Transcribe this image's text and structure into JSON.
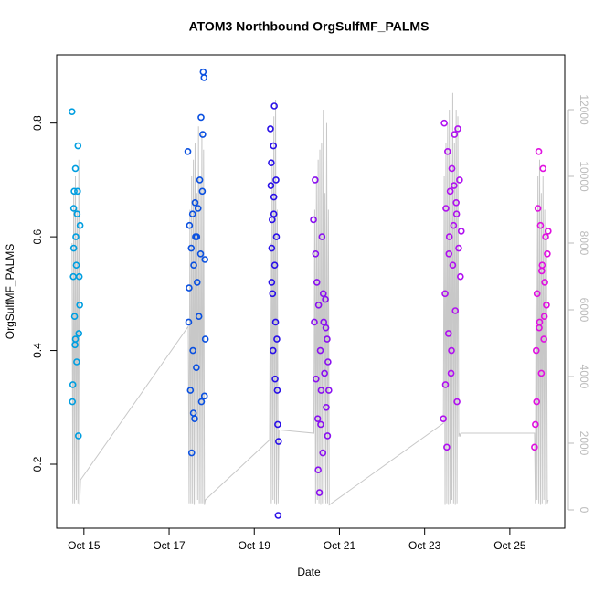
{
  "chart_data": {
    "type": "scatter",
    "title": "ATOM3 Northbound OrgSulfMF_PALMS",
    "x_label": "Date",
    "y_label": "OrgSulfMF_PALMS",
    "xlim": [
      14.36,
      26.29
    ],
    "xticks": [
      {
        "value": 15,
        "label": "Oct 15"
      },
      {
        "value": 17,
        "label": "Oct 17"
      },
      {
        "value": 19,
        "label": "Oct 19"
      },
      {
        "value": 21,
        "label": "Oct 21"
      },
      {
        "value": 23,
        "label": "Oct 23"
      },
      {
        "value": 25,
        "label": "Oct 25"
      }
    ],
    "ylim": [
      0.0875,
      0.92
    ],
    "yticks": [
      0.2,
      0.4,
      0.6,
      0.8
    ],
    "y2lim": [
      -548,
      13644
    ],
    "y2ticks": [
      0,
      2000,
      4000,
      6000,
      8000,
      10000,
      12000
    ],
    "series": [
      {
        "axis": "y2",
        "color": "#c8c8c8",
        "x": [
          14.72,
          14.74,
          14.76,
          14.78,
          14.8,
          14.82,
          14.84,
          14.86,
          14.88,
          14.9,
          14.92,
          17.45,
          17.47,
          17.49,
          17.51,
          17.53,
          17.55,
          17.57,
          17.59,
          17.61,
          17.63,
          17.65,
          17.67,
          17.69,
          17.71,
          17.73,
          17.75,
          17.77,
          17.79,
          17.81,
          17.83,
          17.85,
          19.36,
          19.38,
          19.4,
          19.42,
          19.44,
          19.46,
          19.48,
          19.5,
          19.52,
          19.54,
          19.56,
          19.58,
          20.4,
          20.42,
          20.44,
          20.46,
          20.48,
          20.5,
          20.52,
          20.54,
          20.56,
          20.58,
          20.6,
          20.62,
          20.64,
          20.66,
          20.68,
          20.7,
          20.72,
          20.74,
          20.76,
          23.44,
          23.46,
          23.48,
          23.5,
          23.52,
          23.54,
          23.56,
          23.58,
          23.6,
          23.62,
          23.64,
          23.66,
          23.68,
          23.7,
          23.72,
          23.74,
          23.76,
          23.78,
          23.8,
          23.82,
          23.84,
          23.86,
          25.58,
          25.6,
          25.62,
          25.64,
          25.66,
          25.68,
          25.7,
          25.72,
          25.74,
          25.76,
          25.78,
          25.8,
          25.82,
          25.84,
          25.86,
          25.88,
          25.9
        ],
        "values": [
          8000,
          200,
          9500,
          200,
          10000,
          300,
          9000,
          200,
          10500,
          150,
          900,
          5500,
          200,
          9000,
          200,
          10000,
          200,
          10500,
          150,
          11000,
          200,
          9500,
          300,
          11500,
          200,
          10000,
          200,
          11300,
          200,
          10800,
          150,
          300,
          2100,
          8000,
          200,
          10500,
          300,
          11800,
          200,
          12300,
          150,
          9000,
          200,
          2400,
          2300,
          9000,
          200,
          10000,
          300,
          10500,
          200,
          10800,
          150,
          11000,
          200,
          12000,
          300,
          9500,
          200,
          11600,
          200,
          9000,
          150,
          2600,
          10000,
          150,
          11000,
          200,
          11600,
          150,
          12000,
          200,
          11500,
          300,
          12500,
          200,
          11000,
          150,
          12000,
          200,
          11800,
          2200,
          2300,
          2200,
          2300,
          2300,
          200,
          9000,
          300,
          10000,
          200,
          10500,
          150,
          9500,
          200,
          10000,
          300,
          9000,
          150,
          8500,
          200,
          300
        ]
      },
      {
        "color": "#009ee0",
        "x": [
          14.72,
          14.73,
          14.74,
          14.75,
          14.76,
          14.77,
          14.78,
          14.79,
          14.8,
          14.81,
          14.82,
          14.83,
          14.84,
          14.85,
          14.86,
          14.87,
          14.88,
          14.89,
          14.9,
          14.91,
          14.76,
          14.8
        ],
        "values": [
          0.82,
          0.31,
          0.34,
          0.53,
          0.65,
          0.68,
          0.46,
          0.41,
          0.72,
          0.6,
          0.55,
          0.38,
          0.64,
          0.68,
          0.76,
          0.25,
          0.43,
          0.53,
          0.48,
          0.62,
          0.58,
          0.42
        ]
      },
      {
        "color": "#0a50e0",
        "x": [
          17.44,
          17.46,
          17.48,
          17.5,
          17.52,
          17.53,
          17.55,
          17.56,
          17.58,
          17.6,
          17.62,
          17.64,
          17.66,
          17.68,
          17.7,
          17.72,
          17.74,
          17.76,
          17.78,
          17.8,
          17.82,
          17.84,
          17.85,
          17.47,
          17.57,
          17.61,
          17.65,
          17.75,
          17.79,
          17.83
        ],
        "values": [
          0.75,
          0.45,
          0.62,
          0.33,
          0.58,
          0.22,
          0.64,
          0.4,
          0.55,
          0.28,
          0.6,
          0.37,
          0.52,
          0.65,
          0.46,
          0.7,
          0.57,
          0.31,
          0.68,
          0.89,
          0.88,
          0.56,
          0.42,
          0.51,
          0.29,
          0.66,
          0.6,
          0.81,
          0.78,
          0.32
        ]
      },
      {
        "color": "#2a10e8",
        "x": [
          19.38,
          19.39,
          19.4,
          19.41,
          19.42,
          19.43,
          19.44,
          19.45,
          19.46,
          19.47,
          19.48,
          19.49,
          19.5,
          19.51,
          19.52,
          19.53,
          19.54,
          19.55,
          19.56,
          19.57,
          19.41,
          19.46
        ],
        "values": [
          0.79,
          0.69,
          0.73,
          0.58,
          0.63,
          0.5,
          0.4,
          0.76,
          0.67,
          0.83,
          0.55,
          0.35,
          0.45,
          0.7,
          0.6,
          0.42,
          0.33,
          0.27,
          0.11,
          0.24,
          0.52,
          0.64
        ]
      },
      {
        "color": "#8a10f0",
        "x": [
          20.39,
          20.41,
          20.43,
          20.45,
          20.47,
          20.49,
          20.51,
          20.53,
          20.55,
          20.57,
          20.59,
          20.61,
          20.63,
          20.65,
          20.67,
          20.69,
          20.71,
          20.73,
          20.75,
          20.44,
          20.5,
          20.56,
          20.62,
          20.68,
          20.72
        ],
        "values": [
          0.63,
          0.45,
          0.7,
          0.35,
          0.52,
          0.28,
          0.48,
          0.15,
          0.4,
          0.33,
          0.6,
          0.22,
          0.45,
          0.36,
          0.49,
          0.3,
          0.42,
          0.38,
          0.33,
          0.57,
          0.19,
          0.27,
          0.5,
          0.44,
          0.25
        ]
      },
      {
        "color": "#b010f0",
        "x": [
          23.44,
          23.46,
          23.48,
          23.5,
          23.52,
          23.54,
          23.56,
          23.58,
          23.6,
          23.62,
          23.64,
          23.66,
          23.68,
          23.7,
          23.72,
          23.74,
          23.76,
          23.78,
          23.8,
          23.82,
          23.84,
          23.86,
          23.49,
          23.57,
          23.63,
          23.69,
          23.75
        ],
        "values": [
          0.28,
          0.8,
          0.5,
          0.65,
          0.23,
          0.75,
          0.43,
          0.6,
          0.68,
          0.36,
          0.72,
          0.55,
          0.62,
          0.78,
          0.47,
          0.66,
          0.31,
          0.79,
          0.58,
          0.7,
          0.53,
          0.61,
          0.34,
          0.57,
          0.4,
          0.69,
          0.64
        ]
      },
      {
        "color": "#e010e0",
        "x": [
          25.58,
          25.6,
          25.62,
          25.64,
          25.66,
          25.68,
          25.7,
          25.72,
          25.74,
          25.76,
          25.78,
          25.8,
          25.82,
          25.84,
          25.86,
          25.88,
          25.9,
          25.63,
          25.69,
          25.75,
          25.81
        ],
        "values": [
          0.23,
          0.27,
          0.4,
          0.5,
          0.65,
          0.75,
          0.45,
          0.62,
          0.36,
          0.55,
          0.72,
          0.42,
          0.52,
          0.6,
          0.48,
          0.57,
          0.61,
          0.31,
          0.44,
          0.54,
          0.46
        ]
      }
    ]
  }
}
